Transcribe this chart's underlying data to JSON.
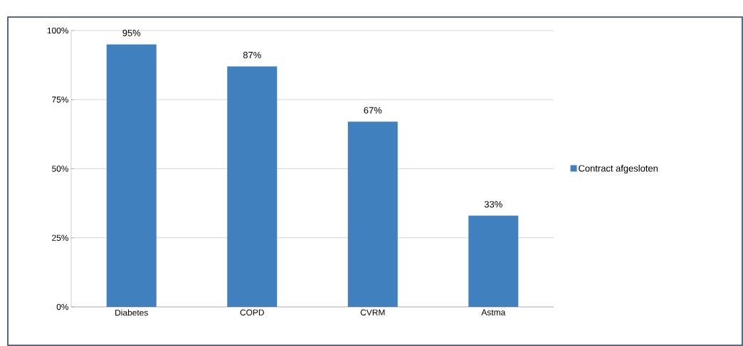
{
  "chart_data": {
    "type": "bar",
    "categories": [
      "Diabetes",
      "COPD",
      "CVRM",
      "Astma"
    ],
    "series": [
      {
        "name": "Contract afgesloten",
        "color": "#4080bf",
        "values": [
          95,
          87,
          67,
          33
        ],
        "value_labels": [
          "95%",
          "87%",
          "67%",
          "33%"
        ]
      }
    ],
    "ylim": [
      0,
      100
    ],
    "yticks": [
      {
        "value": 0,
        "label": "0%"
      },
      {
        "value": 25,
        "label": "25%"
      },
      {
        "value": 50,
        "label": "50%"
      },
      {
        "value": 75,
        "label": "75%"
      },
      {
        "value": 100,
        "label": "100%"
      }
    ],
    "grid": "y",
    "legend": "right"
  }
}
